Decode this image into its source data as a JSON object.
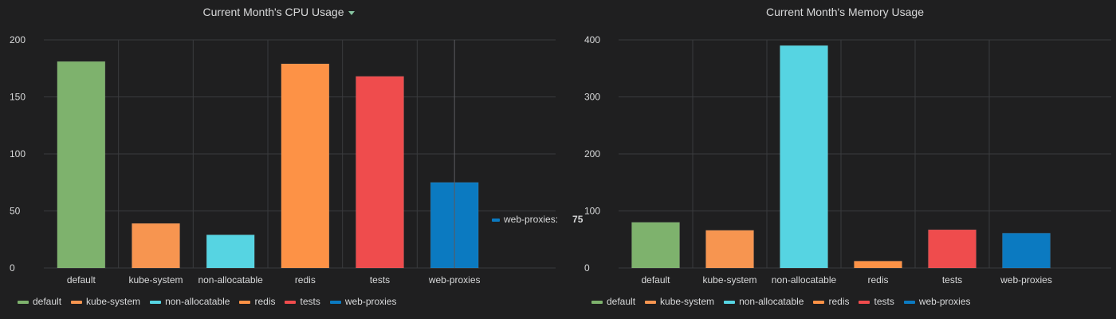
{
  "colors": {
    "default": "#7eb26d",
    "kube-system": "#f79550",
    "non-allocatable": "#56d4e2",
    "redis": "#fd9246",
    "tests": "#ef4c4d",
    "web-proxies": "#0b7ac1"
  },
  "tooltip": {
    "series": "web-proxies:",
    "value": "75"
  },
  "chart_data": [
    {
      "type": "bar",
      "title": "Current Month's CPU Usage",
      "categories": [
        "default",
        "kube-system",
        "non-allocatable",
        "redis",
        "tests",
        "web-proxies"
      ],
      "values": [
        181,
        39,
        29,
        179,
        168,
        75
      ],
      "yticks": [
        "0",
        "50",
        "100",
        "150",
        "200"
      ],
      "ylim": [
        0,
        200
      ],
      "grid": true,
      "legend": "bottom-left",
      "legend_entries": [
        "default",
        "kube-system",
        "non-allocatable",
        "redis",
        "tests",
        "web-proxies"
      ]
    },
    {
      "type": "bar",
      "title": "Current Month's Memory Usage",
      "categories": [
        "default",
        "kube-system",
        "non-allocatable",
        "redis",
        "tests",
        "web-proxies"
      ],
      "values": [
        80,
        66,
        390,
        12,
        67,
        61
      ],
      "yticks": [
        "0",
        "100",
        "200",
        "300",
        "400"
      ],
      "ylim": [
        0,
        400
      ],
      "grid": true,
      "legend": "bottom-left",
      "legend_entries": [
        "default",
        "kube-system",
        "non-allocatable",
        "redis",
        "tests",
        "web-proxies"
      ]
    }
  ]
}
